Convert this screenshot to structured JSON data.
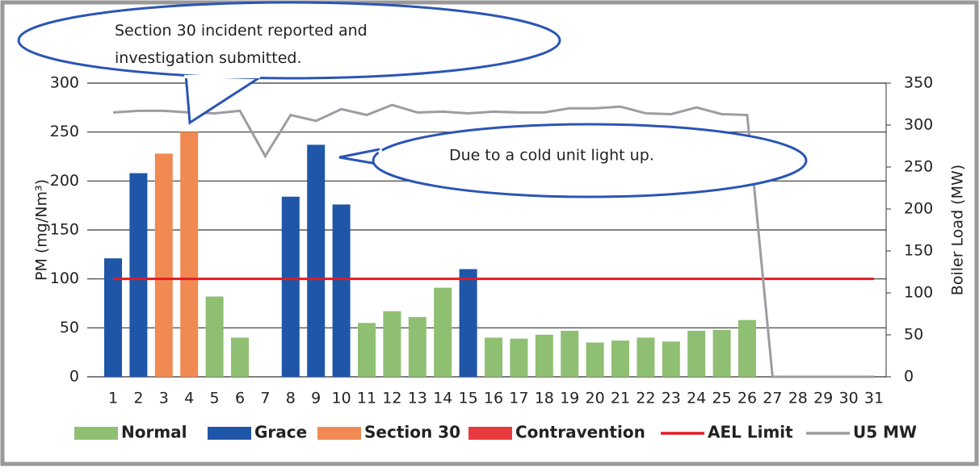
{
  "chart_data": {
    "type": "bar",
    "categories": [
      "1",
      "2",
      "3",
      "4",
      "5",
      "6",
      "7",
      "8",
      "9",
      "10",
      "11",
      "12",
      "13",
      "14",
      "15",
      "16",
      "17",
      "18",
      "19",
      "20",
      "21",
      "22",
      "23",
      "24",
      "25",
      "26",
      "27",
      "28",
      "29",
      "30",
      "31"
    ],
    "series": [
      {
        "name": "Normal",
        "type": "bar",
        "color": "#8fbf72",
        "values": [
          null,
          null,
          null,
          null,
          82,
          40,
          null,
          null,
          null,
          null,
          55,
          67,
          61,
          91,
          null,
          40,
          39,
          43,
          47,
          35,
          37,
          40,
          36,
          47,
          48,
          58,
          null,
          null,
          null,
          null,
          null
        ]
      },
      {
        "name": "Grace",
        "type": "bar",
        "color": "#1f56a8",
        "values": [
          121,
          208,
          null,
          null,
          null,
          null,
          null,
          184,
          237,
          176,
          null,
          null,
          null,
          null,
          110,
          null,
          null,
          null,
          null,
          null,
          null,
          null,
          null,
          null,
          null,
          null,
          null,
          null,
          null,
          null,
          null
        ]
      },
      {
        "name": "Section 30",
        "type": "bar",
        "color": "#f08a52",
        "values": [
          null,
          null,
          228,
          250,
          null,
          null,
          null,
          null,
          null,
          null,
          null,
          null,
          null,
          null,
          null,
          null,
          null,
          null,
          null,
          null,
          null,
          null,
          null,
          null,
          null,
          null,
          null,
          null,
          null,
          null,
          null
        ]
      },
      {
        "name": "Contravention",
        "type": "bar",
        "color": "#e8393f",
        "values": [
          null,
          null,
          null,
          null,
          null,
          null,
          null,
          null,
          null,
          null,
          null,
          null,
          null,
          null,
          null,
          null,
          null,
          null,
          null,
          null,
          null,
          null,
          null,
          null,
          null,
          null,
          null,
          null,
          null,
          null,
          null
        ]
      },
      {
        "name": "AEL Limit",
        "type": "line",
        "color": "#e31b23",
        "values": [
          100,
          100,
          100,
          100,
          100,
          100,
          100,
          100,
          100,
          100,
          100,
          100,
          100,
          100,
          100,
          100,
          100,
          100,
          100,
          100,
          100,
          100,
          100,
          100,
          100,
          100,
          100,
          100,
          100,
          100,
          100
        ]
      },
      {
        "name": "U5 MW",
        "type": "line",
        "axis": "y2",
        "color": "#9c9ca2",
        "values": [
          315,
          317,
          317,
          315,
          314,
          317,
          263,
          312,
          305,
          319,
          312,
          324,
          315,
          316,
          314,
          316,
          315,
          315,
          320,
          320,
          322,
          314,
          313,
          321,
          313,
          312,
          0,
          0,
          0,
          0,
          0
        ]
      }
    ],
    "ylabel": "PM (mg/Nm³)",
    "y2label": "Boiler Load (MW)",
    "ylim": [
      0,
      300
    ],
    "yticks": [
      0,
      50,
      100,
      150,
      200,
      250,
      300
    ],
    "y2lim": [
      0,
      350
    ],
    "y2ticks": [
      0,
      50,
      100,
      150,
      200,
      250,
      300,
      350
    ],
    "grid": true,
    "legend": "bottom",
    "annotations": [
      "Section 30 incident reported and investigation submitted.",
      "Due to a cold unit light up."
    ]
  }
}
